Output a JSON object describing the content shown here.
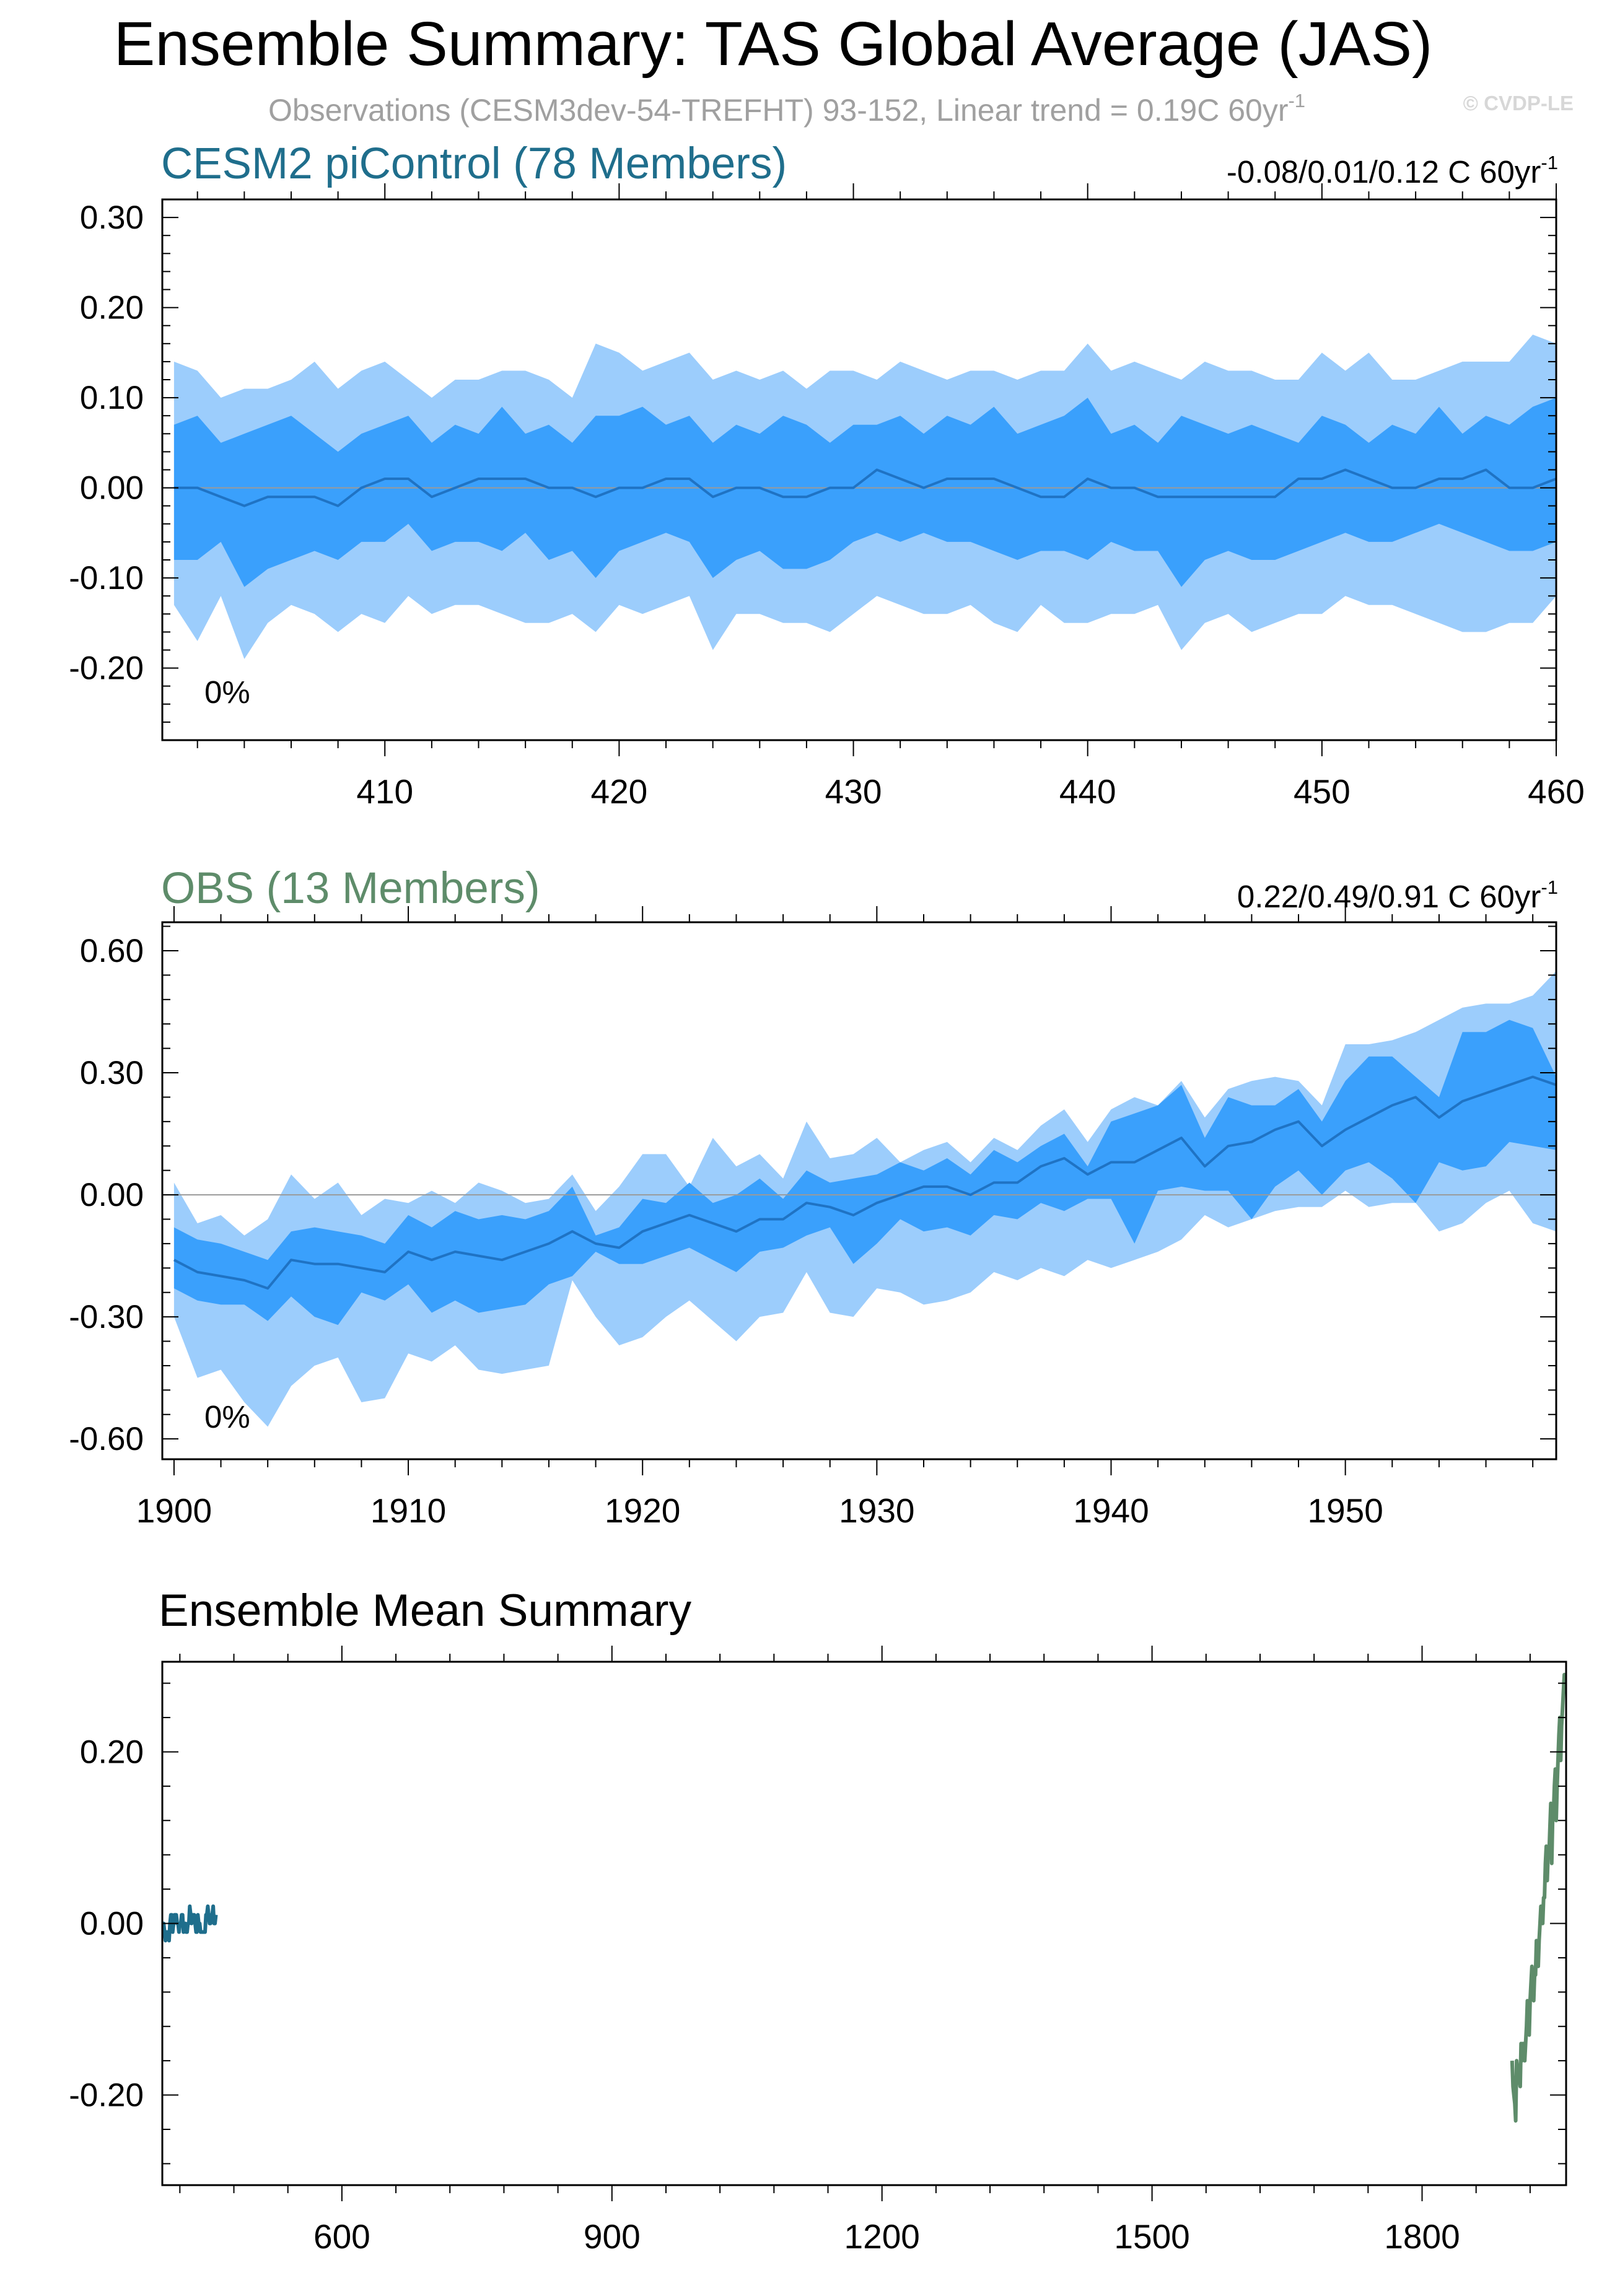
{
  "main_title": "Ensemble Summary: TAS Global Average (JAS)",
  "subtitle": "Observations (CESM3dev-54-TREFHT) 93-152, Linear trend = 0.19C 60yr",
  "subtitle_sup": "-1",
  "copyright": "© CVDP-LE",
  "colors": {
    "outer_band": "#9ccdfc",
    "inner_band": "#3aa0fc",
    "mean_line": "#1f73c4",
    "model_title": "#1f6e8c",
    "obs_title": "#5e8c6a",
    "subtitle": "#a0a0a0",
    "copyright": "#d7d7d7",
    "axis": "#000000"
  },
  "chart_data": [
    {
      "id": "cesm2",
      "type": "area",
      "title": "CESM2 piControl (78 Members)",
      "trend_label": "-0.08/0.01/0.12 C 60yr",
      "trend_sup": "-1",
      "pct_label": "0%",
      "xlim": [
        400.5,
        460
      ],
      "ylim": [
        -0.28,
        0.32
      ],
      "yticks": [
        -0.2,
        -0.1,
        0.0,
        0.1,
        0.2,
        0.3
      ],
      "ytick_labels": [
        "-0.20",
        "-0.10",
        "0.00",
        "0.10",
        "0.20",
        "0.30"
      ],
      "xticks": [
        410,
        420,
        430,
        440,
        450,
        460
      ],
      "xtick_labels": [
        "410",
        "420",
        "430",
        "440",
        "450",
        "460"
      ],
      "zero_line": true,
      "x": [
        401,
        402,
        403,
        404,
        405,
        406,
        407,
        408,
        409,
        410,
        411,
        412,
        413,
        414,
        415,
        416,
        417,
        418,
        419,
        420,
        421,
        422,
        423,
        424,
        425,
        426,
        427,
        428,
        429,
        430,
        431,
        432,
        433,
        434,
        435,
        436,
        437,
        438,
        439,
        440,
        441,
        442,
        443,
        444,
        445,
        446,
        447,
        448,
        449,
        450,
        451,
        452,
        453,
        454,
        455,
        456,
        457,
        458,
        459,
        460
      ],
      "mean": [
        0.0,
        0.0,
        -0.01,
        -0.02,
        -0.01,
        -0.01,
        -0.01,
        -0.02,
        0.0,
        0.01,
        0.01,
        -0.01,
        0.0,
        0.01,
        0.01,
        0.01,
        0.0,
        0.0,
        -0.01,
        0.0,
        0.0,
        0.01,
        0.01,
        -0.01,
        0.0,
        0.0,
        -0.01,
        -0.01,
        0.0,
        0.0,
        0.02,
        0.01,
        0.0,
        0.01,
        0.01,
        0.01,
        0.0,
        -0.01,
        -0.01,
        0.01,
        0.0,
        0.0,
        -0.01,
        -0.01,
        -0.01,
        -0.01,
        -0.01,
        -0.01,
        0.01,
        0.01,
        0.02,
        0.01,
        0.0,
        0.0,
        0.01,
        0.01,
        0.02,
        0.0,
        0.0,
        0.01
      ],
      "inner_upper": [
        0.07,
        0.08,
        0.05,
        0.06,
        0.07,
        0.08,
        0.06,
        0.04,
        0.06,
        0.07,
        0.08,
        0.05,
        0.07,
        0.06,
        0.09,
        0.06,
        0.07,
        0.05,
        0.08,
        0.08,
        0.09,
        0.07,
        0.08,
        0.05,
        0.07,
        0.06,
        0.08,
        0.07,
        0.05,
        0.07,
        0.07,
        0.08,
        0.06,
        0.08,
        0.07,
        0.09,
        0.06,
        0.07,
        0.08,
        0.1,
        0.06,
        0.07,
        0.05,
        0.08,
        0.07,
        0.06,
        0.07,
        0.06,
        0.05,
        0.08,
        0.07,
        0.05,
        0.07,
        0.06,
        0.09,
        0.06,
        0.08,
        0.07,
        0.09,
        0.1
      ],
      "inner_lower": [
        -0.08,
        -0.08,
        -0.06,
        -0.11,
        -0.09,
        -0.08,
        -0.07,
        -0.08,
        -0.06,
        -0.06,
        -0.04,
        -0.07,
        -0.06,
        -0.06,
        -0.07,
        -0.05,
        -0.08,
        -0.07,
        -0.1,
        -0.07,
        -0.06,
        -0.05,
        -0.06,
        -0.1,
        -0.08,
        -0.07,
        -0.09,
        -0.09,
        -0.08,
        -0.06,
        -0.05,
        -0.06,
        -0.05,
        -0.06,
        -0.06,
        -0.07,
        -0.08,
        -0.07,
        -0.07,
        -0.08,
        -0.06,
        -0.07,
        -0.07,
        -0.11,
        -0.08,
        -0.07,
        -0.08,
        -0.08,
        -0.07,
        -0.06,
        -0.05,
        -0.06,
        -0.06,
        -0.05,
        -0.04,
        -0.05,
        -0.06,
        -0.07,
        -0.07,
        -0.06
      ],
      "outer_upper": [
        0.14,
        0.13,
        0.1,
        0.11,
        0.11,
        0.12,
        0.14,
        0.11,
        0.13,
        0.14,
        0.12,
        0.1,
        0.12,
        0.12,
        0.13,
        0.13,
        0.12,
        0.1,
        0.16,
        0.15,
        0.13,
        0.14,
        0.15,
        0.12,
        0.13,
        0.12,
        0.13,
        0.11,
        0.13,
        0.13,
        0.12,
        0.14,
        0.13,
        0.12,
        0.13,
        0.13,
        0.12,
        0.13,
        0.13,
        0.16,
        0.13,
        0.14,
        0.13,
        0.12,
        0.14,
        0.13,
        0.13,
        0.12,
        0.12,
        0.15,
        0.13,
        0.15,
        0.12,
        0.12,
        0.13,
        0.14,
        0.14,
        0.14,
        0.17,
        0.16
      ],
      "outer_lower": [
        -0.13,
        -0.17,
        -0.12,
        -0.19,
        -0.15,
        -0.13,
        -0.14,
        -0.16,
        -0.14,
        -0.15,
        -0.12,
        -0.14,
        -0.13,
        -0.13,
        -0.14,
        -0.15,
        -0.15,
        -0.14,
        -0.16,
        -0.13,
        -0.14,
        -0.13,
        -0.12,
        -0.18,
        -0.14,
        -0.14,
        -0.15,
        -0.15,
        -0.16,
        -0.14,
        -0.12,
        -0.13,
        -0.14,
        -0.14,
        -0.13,
        -0.15,
        -0.16,
        -0.13,
        -0.15,
        -0.15,
        -0.14,
        -0.14,
        -0.13,
        -0.18,
        -0.15,
        -0.14,
        -0.16,
        -0.15,
        -0.14,
        -0.14,
        -0.12,
        -0.13,
        -0.13,
        -0.14,
        -0.15,
        -0.16,
        -0.16,
        -0.15,
        -0.15,
        -0.12
      ]
    },
    {
      "id": "obs",
      "type": "area",
      "title": "OBS (13 Members)",
      "trend_label": "0.22/0.49/0.91 C 60yr",
      "trend_sup": "-1",
      "pct_label": "0%",
      "xlim": [
        1899.5,
        1959
      ],
      "ylim": [
        -0.65,
        0.67
      ],
      "yticks": [
        -0.6,
        -0.3,
        0.0,
        0.3,
        0.6
      ],
      "ytick_labels": [
        "-0.60",
        "-0.30",
        "0.00",
        "0.30",
        "0.60"
      ],
      "xticks": [
        1900,
        1910,
        1920,
        1930,
        1940,
        1950
      ],
      "xtick_labels": [
        "1900",
        "1910",
        "1920",
        "1930",
        "1940",
        "1950"
      ],
      "zero_line": true,
      "x": [
        1900,
        1901,
        1902,
        1903,
        1904,
        1905,
        1906,
        1907,
        1908,
        1909,
        1910,
        1911,
        1912,
        1913,
        1914,
        1915,
        1916,
        1917,
        1918,
        1919,
        1920,
        1921,
        1922,
        1923,
        1924,
        1925,
        1926,
        1927,
        1928,
        1929,
        1930,
        1931,
        1932,
        1933,
        1934,
        1935,
        1936,
        1937,
        1938,
        1939,
        1940,
        1941,
        1942,
        1943,
        1944,
        1945,
        1946,
        1947,
        1948,
        1949,
        1950,
        1951,
        1952,
        1953,
        1954,
        1955,
        1956,
        1957,
        1958,
        1959
      ],
      "mean": [
        -0.16,
        -0.19,
        -0.2,
        -0.21,
        -0.23,
        -0.16,
        -0.17,
        -0.17,
        -0.18,
        -0.19,
        -0.14,
        -0.16,
        -0.14,
        -0.15,
        -0.16,
        -0.14,
        -0.12,
        -0.09,
        -0.12,
        -0.13,
        -0.09,
        -0.07,
        -0.05,
        -0.07,
        -0.09,
        -0.06,
        -0.06,
        -0.02,
        -0.03,
        -0.05,
        -0.02,
        0,
        0.02,
        0.02,
        0,
        0.03,
        0.03,
        0.07,
        0.09,
        0.05,
        0.08,
        0.08,
        0.11,
        0.14,
        0.07,
        0.12,
        0.13,
        0.16,
        0.18,
        0.12,
        0.16,
        0.19,
        0.22,
        0.24,
        0.19,
        0.23,
        0.25,
        0.27,
        0.29,
        0.27
      ],
      "inner_upper": [
        -0.08,
        -0.11,
        -0.12,
        -0.14,
        -0.16,
        -0.09,
        -0.08,
        -0.09,
        -0.1,
        -0.12,
        -0.05,
        -0.08,
        -0.04,
        -0.06,
        -0.05,
        -0.06,
        -0.04,
        0.02,
        -0.1,
        -0.08,
        -0.01,
        -0.02,
        0.03,
        -0.02,
        0,
        0.04,
        -0.01,
        0.06,
        0.03,
        0.04,
        0.05,
        0.08,
        0.06,
        0.09,
        0.05,
        0.11,
        0.08,
        0.12,
        0.15,
        0.07,
        0.18,
        0.2,
        0.22,
        0.27,
        0.14,
        0.24,
        0.22,
        0.22,
        0.26,
        0.18,
        0.28,
        0.34,
        0.34,
        0.29,
        0.24,
        0.4,
        0.4,
        0.43,
        0.41,
        0.29
      ],
      "inner_lower": [
        -0.23,
        -0.26,
        -0.27,
        -0.27,
        -0.31,
        -0.25,
        -0.3,
        -0.32,
        -0.24,
        -0.26,
        -0.22,
        -0.29,
        -0.26,
        -0.29,
        -0.28,
        -0.27,
        -0.22,
        -0.2,
        -0.14,
        -0.17,
        -0.17,
        -0.15,
        -0.13,
        -0.16,
        -0.19,
        -0.14,
        -0.13,
        -0.1,
        -0.08,
        -0.17,
        -0.12,
        -0.06,
        -0.09,
        -0.08,
        -0.1,
        -0.05,
        -0.06,
        -0.02,
        -0.04,
        -0.01,
        -0.01,
        -0.12,
        0.01,
        0.02,
        0.01,
        0.01,
        -0.06,
        0.02,
        0.06,
        0,
        0.06,
        0.08,
        0.04,
        -0.02,
        0.08,
        0.06,
        0.07,
        0.13,
        0.12,
        0.11
      ],
      "outer_upper": [
        0.03,
        -0.07,
        -0.05,
        -0.1,
        -0.06,
        0.05,
        -0.01,
        0.03,
        -0.05,
        -0.01,
        -0.02,
        0.01,
        -0.02,
        0.03,
        0.01,
        -0.02,
        -0.01,
        0.05,
        -0.04,
        0.02,
        0.1,
        0.1,
        0.02,
        0.14,
        0.07,
        0.1,
        0.04,
        0.18,
        0.09,
        0.1,
        0.14,
        0.08,
        0.11,
        0.13,
        0.08,
        0.14,
        0.11,
        0.17,
        0.21,
        0.13,
        0.21,
        0.24,
        0.22,
        0.28,
        0.19,
        0.26,
        0.28,
        0.29,
        0.28,
        0.22,
        0.37,
        0.37,
        0.38,
        0.4,
        0.43,
        0.46,
        0.47,
        0.47,
        0.49,
        0.55
      ],
      "outer_lower": [
        -0.3,
        -0.45,
        -0.43,
        -0.51,
        -0.57,
        -0.47,
        -0.42,
        -0.4,
        -0.51,
        -0.5,
        -0.39,
        -0.41,
        -0.37,
        -0.43,
        -0.44,
        -0.43,
        -0.42,
        -0.21,
        -0.3,
        -0.37,
        -0.35,
        -0.3,
        -0.26,
        -0.31,
        -0.36,
        -0.3,
        -0.29,
        -0.19,
        -0.29,
        -0.3,
        -0.23,
        -0.24,
        -0.27,
        -0.26,
        -0.24,
        -0.19,
        -0.21,
        -0.18,
        -0.2,
        -0.16,
        -0.18,
        -0.16,
        -0.14,
        -0.11,
        -0.05,
        -0.08,
        -0.06,
        -0.04,
        -0.03,
        -0.03,
        0.01,
        -0.03,
        -0.02,
        -0.02,
        -0.09,
        -0.07,
        -0.02,
        0.01,
        -0.07,
        -0.09
      ]
    },
    {
      "id": "ens_mean",
      "type": "line",
      "title": "Ensemble Mean Summary",
      "xlim": [
        400.5,
        1960
      ],
      "ylim": [
        -0.305,
        0.305
      ],
      "yticks": [
        -0.2,
        0.0,
        0.2
      ],
      "ytick_labels": [
        "-0.20",
        "0.00",
        "0.20"
      ],
      "xticks": [
        600,
        900,
        1200,
        1500,
        1800
      ],
      "xtick_labels": [
        "600",
        "900",
        "1200",
        "1500",
        "1800"
      ],
      "zero_line": false,
      "series": [
        {
          "name": "CESM2 piControl",
          "color": "#1f6e8c",
          "x": [
            401,
            402,
            403,
            404,
            405,
            406,
            407,
            408,
            409,
            410,
            411,
            412,
            413,
            414,
            415,
            416,
            417,
            418,
            419,
            420,
            421,
            422,
            423,
            424,
            425,
            426,
            427,
            428,
            429,
            430,
            431,
            432,
            433,
            434,
            435,
            436,
            437,
            438,
            439,
            440,
            441,
            442,
            443,
            444,
            445,
            446,
            447,
            448,
            449,
            450,
            451,
            452,
            453,
            454,
            455,
            456,
            457,
            458,
            459,
            460
          ],
          "values": [
            0.0,
            0.0,
            -0.01,
            -0.02,
            -0.01,
            -0.01,
            -0.01,
            -0.02,
            0.0,
            0.01,
            0.01,
            -0.01,
            0.0,
            0.01,
            0.01,
            0.01,
            0.0,
            0.0,
            -0.01,
            0.0,
            0.0,
            0.01,
            0.01,
            -0.01,
            0.0,
            0.0,
            -0.01,
            -0.01,
            0.0,
            0.0,
            0.02,
            0.01,
            0.0,
            0.01,
            0.01,
            0.01,
            0.0,
            -0.01,
            -0.01,
            0.01,
            0.0,
            0.0,
            -0.01,
            -0.01,
            -0.01,
            -0.01,
            -0.01,
            -0.01,
            0.01,
            0.01,
            0.02,
            0.01,
            0.0,
            0.0,
            0.01,
            0.01,
            0.02,
            0.0,
            0.0,
            0.01
          ]
        },
        {
          "name": "OBS",
          "color": "#5e8c6a",
          "x": [
            1900,
            1901,
            1902,
            1903,
            1904,
            1905,
            1906,
            1907,
            1908,
            1909,
            1910,
            1911,
            1912,
            1913,
            1914,
            1915,
            1916,
            1917,
            1918,
            1919,
            1920,
            1921,
            1922,
            1923,
            1924,
            1925,
            1926,
            1927,
            1928,
            1929,
            1930,
            1931,
            1932,
            1933,
            1934,
            1935,
            1936,
            1937,
            1938,
            1939,
            1940,
            1941,
            1942,
            1943,
            1944,
            1945,
            1946,
            1947,
            1948,
            1949,
            1950,
            1951,
            1952,
            1953,
            1954,
            1955,
            1956,
            1957,
            1958,
            1959
          ],
          "values": [
            -0.16,
            -0.19,
            -0.2,
            -0.21,
            -0.23,
            -0.16,
            -0.17,
            -0.17,
            -0.18,
            -0.19,
            -0.14,
            -0.16,
            -0.14,
            -0.15,
            -0.16,
            -0.14,
            -0.12,
            -0.09,
            -0.12,
            -0.13,
            -0.09,
            -0.07,
            -0.05,
            -0.07,
            -0.09,
            -0.06,
            -0.06,
            -0.02,
            -0.03,
            -0.05,
            -0.02,
            0,
            0.02,
            0.02,
            0,
            0.03,
            0.03,
            0.07,
            0.09,
            0.05,
            0.08,
            0.08,
            0.11,
            0.14,
            0.07,
            0.12,
            0.13,
            0.16,
            0.18,
            0.12,
            0.16,
            0.19,
            0.22,
            0.24,
            0.19,
            0.23,
            0.25,
            0.27,
            0.29,
            0.27
          ]
        }
      ]
    }
  ]
}
